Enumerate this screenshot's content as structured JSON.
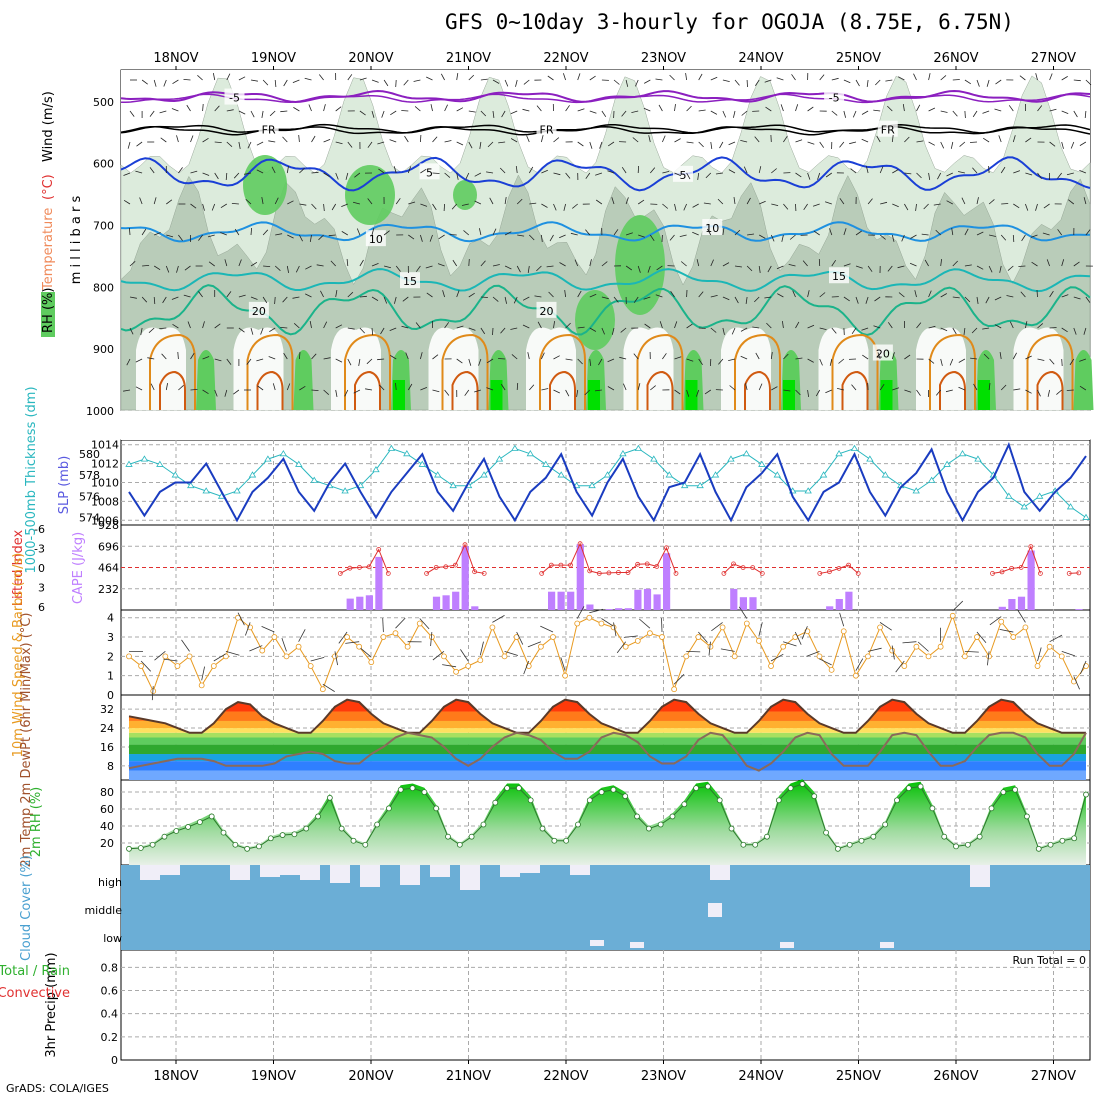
{
  "title": "GFS 0~10day 3-hourly for OGOJA (8.75E, 6.75N)",
  "credit": "GrADS: COLA/IGES",
  "colors": {
    "rh_light": "#dcebdc",
    "rh_mid": "#b3c7b3",
    "rh_dark": "#8fa58f",
    "rh_green": "#5fcc5f",
    "rh_bright": "#00e000",
    "temp_m5": "#8b1fbf",
    "temp_fr": "#000000",
    "temp_5": "#1a3fd6",
    "temp_10": "#1e90e0",
    "temp_15": "#1bb6b6",
    "temp_20": "#1bb38a",
    "temp_25": "#e08a1a",
    "temp_30": "#d05a10",
    "slp": "#1a3cc0",
    "thick": "#2ab7bf",
    "cape": "#bf7fff",
    "li": "#e03030",
    "wind": "#e89a20",
    "cloud_bg": "#6baed6",
    "cloud_high": "#f0eef8"
  },
  "chart_data": [
    {
      "type": "heatmap",
      "name": "cross-section",
      "ylabel": "m i l l i b a r s",
      "legend_labels": {
        "rh": "RH (%)",
        "temperature": "Temperature",
        "temp_unit": "(°C)",
        "wind": "Wind (m/s)"
      },
      "y_ticks": [
        "500",
        "600",
        "700",
        "800",
        "900",
        "1000"
      ],
      "y_values": [
        500,
        600,
        700,
        800,
        900,
        1000
      ],
      "contour_labels": [
        {
          "text": "-5",
          "t": 1.1,
          "p": 493,
          "color": "temp_m5"
        },
        {
          "text": "-5",
          "t": 7.25,
          "p": 493,
          "color": "temp_m5"
        },
        {
          "text": "FR",
          "t": 1.45,
          "p": 545,
          "color": "temp_fr"
        },
        {
          "text": "FR",
          "t": 4.3,
          "p": 545,
          "color": "temp_fr"
        },
        {
          "text": "FR",
          "t": 7.8,
          "p": 545,
          "color": "temp_fr"
        },
        {
          "text": "5",
          "t": 3.1,
          "p": 614,
          "color": "temp_5"
        },
        {
          "text": "5",
          "t": 5.7,
          "p": 618,
          "color": "temp_5"
        },
        {
          "text": "10",
          "t": 2.55,
          "p": 722,
          "color": "temp_10"
        },
        {
          "text": "10",
          "t": 6.0,
          "p": 704,
          "color": "temp_10"
        },
        {
          "text": "15",
          "t": 2.9,
          "p": 790,
          "color": "temp_15"
        },
        {
          "text": "15",
          "t": 7.3,
          "p": 782,
          "color": "temp_15"
        },
        {
          "text": "20",
          "t": 1.35,
          "p": 838,
          "color": "temp_20"
        },
        {
          "text": "20",
          "t": 4.3,
          "p": 838,
          "color": "temp_20"
        },
        {
          "text": "20",
          "t": 7.75,
          "p": 907,
          "color": "temp_20"
        }
      ]
    },
    {
      "type": "line",
      "name": "slp-thickness",
      "ylabel_left": "1000-500mb Thickness (dm)",
      "ylabel_right": "SLP (mb)",
      "left_ticks": [
        "574",
        "576",
        "578",
        "580"
      ],
      "right_ticks": [
        "1006",
        "1008",
        "1010",
        "1012",
        "1014"
      ],
      "series": [
        {
          "name": "SLP",
          "values": [
            1009,
            1006.5,
            1009,
            1010,
            1010,
            1012,
            1009,
            1006,
            1009,
            1010.5,
            1012.5,
            1009,
            1007,
            1010,
            1012,
            1009,
            1006.3,
            1009,
            1011,
            1013,
            1009,
            1007,
            1010,
            1012.5,
            1008.5,
            1006,
            1009,
            1010.5,
            1013,
            1009,
            1006.5,
            1010,
            1012.5,
            1008.5,
            1006,
            1009.5,
            1010,
            1013,
            1009,
            1006,
            1009.5,
            1011,
            1013,
            1008.5,
            1006,
            1009,
            1010,
            1013,
            1009,
            1006.5,
            1009.5,
            1011,
            1013.5,
            1009,
            1006,
            1009,
            1010.5,
            1014,
            1009,
            1007,
            1009,
            1010.5,
            1012.8
          ]
        },
        {
          "name": "Thickness",
          "values": [
            579,
            579.5,
            579,
            578,
            577,
            576.5,
            576,
            576.5,
            578,
            579.5,
            580,
            579,
            577.5,
            577,
            576.5,
            577,
            578.5,
            580.5,
            580,
            579,
            578,
            577,
            577,
            578,
            579.5,
            580.5,
            580,
            579,
            578,
            577,
            577,
            578,
            580,
            580.5,
            579.5,
            578,
            577,
            577,
            578,
            579.5,
            580,
            579,
            578,
            576.5,
            576.5,
            578,
            580,
            580.5,
            579.5,
            578,
            577,
            576.5,
            577.5,
            579,
            580,
            579.5,
            578,
            576,
            575,
            576,
            576.5,
            575,
            574
          ]
        }
      ]
    },
    {
      "type": "bar",
      "name": "cape-lifted-index",
      "ylabel_left": "Lifted Index",
      "ylabel_right": "CAPE (J/kg)",
      "left_ticks": [
        "-6",
        "-3",
        "0",
        "3",
        "6"
      ],
      "right_ticks": [
        "232",
        "464",
        "696",
        "928"
      ],
      "cape_values": [
        0,
        0,
        0,
        0,
        0,
        0,
        0,
        0,
        0,
        0,
        0,
        0,
        0,
        0,
        0,
        0,
        0,
        0,
        0,
        0,
        0,
        0,
        0,
        125,
        145,
        160,
        580,
        0,
        0,
        0,
        0,
        0,
        145,
        160,
        200,
        695,
        40,
        0,
        0,
        0,
        0,
        0,
        0,
        0,
        200,
        200,
        200,
        720,
        60,
        0,
        10,
        20,
        20,
        220,
        230,
        170,
        620,
        0,
        0,
        0,
        0,
        0,
        0,
        230,
        140,
        140,
        0,
        0,
        0,
        0,
        0,
        0,
        0,
        40,
        120,
        200,
        0,
        0,
        0,
        0,
        0,
        0,
        0,
        0,
        0,
        0,
        0,
        0,
        0,
        0,
        0,
        35,
        120,
        145,
        650,
        0,
        0,
        0,
        0,
        10
      ],
      "li_values": [
        null,
        null,
        null,
        null,
        null,
        null,
        null,
        null,
        null,
        null,
        null,
        null,
        null,
        null,
        null,
        null,
        null,
        null,
        null,
        null,
        null,
        null,
        null,
        null,
        null,
        null,
        null,
        null,
        null,
        null,
        null,
        null,
        null,
        null,
        null,
        null,
        null,
        null,
        null,
        null,
        null,
        null,
        null,
        null,
        null,
        null,
        null,
        null,
        null,
        null,
        null,
        null,
        null,
        null,
        null,
        null,
        null,
        null,
        null,
        null,
        null,
        null,
        null,
        null,
        null,
        null,
        null,
        null,
        null,
        null,
        null,
        null,
        null,
        null,
        null,
        null,
        null,
        null,
        null,
        null,
        null,
        null,
        null,
        null,
        null,
        null,
        null,
        null,
        null,
        null,
        null,
        null,
        null,
        null,
        null,
        null,
        null,
        null,
        null,
        null,
        null
      ]
    },
    {
      "type": "line",
      "name": "wind-speed",
      "ylabel": "10m Wind Speed & Barbs (m/s)",
      "y_ticks": [
        "0",
        "1",
        "2",
        "3",
        "4"
      ],
      "values": [
        2,
        1.5,
        0.2,
        2,
        1.5,
        2,
        0.5,
        1.5,
        2,
        4,
        3.5,
        2.3,
        3,
        2,
        2.5,
        1.5,
        0.3,
        2,
        3,
        2.5,
        1.7,
        3,
        3.2,
        2.5,
        3.7,
        3,
        2,
        1.2,
        1.5,
        1.8,
        3.5,
        2,
        3,
        1.5,
        2.5,
        3,
        1,
        3.7,
        4,
        3.7,
        3.5,
        2.5,
        2.8,
        3.2,
        3,
        0.3,
        2,
        3,
        2.5,
        3.5,
        2,
        3.7,
        2.8,
        1.5,
        2.5,
        3,
        3.3,
        2,
        1.3,
        3.3,
        1,
        2,
        3.5,
        2.3,
        1.5,
        2.5,
        2,
        2.5,
        4.1,
        2,
        3,
        2,
        3.8,
        3,
        3.5,
        1.5,
        2.5,
        2,
        0.7,
        1.5
      ],
      "single_values_note": "wind speed"
    },
    {
      "type": "area",
      "name": "temperature",
      "ylabel": "2m Temp 2m DewPt (6hr Min/Max) (°C)",
      "y_ticks": [
        "8",
        "16",
        "24",
        "32"
      ],
      "temp_values": [
        29,
        28,
        27,
        26,
        24,
        22,
        22,
        26,
        32,
        35,
        34,
        29,
        26,
        24,
        22,
        22,
        27,
        33,
        36,
        35,
        30,
        26,
        24,
        22,
        22,
        27,
        33,
        36,
        35,
        30,
        26,
        24,
        22,
        22,
        27,
        33,
        36,
        35,
        30,
        26,
        24,
        22,
        22,
        27,
        33,
        36,
        35,
        30,
        26,
        24,
        22,
        22,
        27,
        33,
        36,
        35,
        30,
        26,
        24,
        22,
        22,
        27,
        33,
        36,
        35,
        30,
        26,
        24,
        22,
        22,
        27,
        33,
        36,
        35,
        30,
        26,
        24,
        22,
        22,
        22
      ],
      "dew_values": [
        7,
        8,
        9,
        10,
        11,
        11,
        11,
        10,
        8,
        8,
        8,
        8,
        9,
        12,
        13,
        14,
        13,
        10,
        9,
        9,
        13,
        16,
        20,
        22,
        21,
        20,
        16,
        11,
        8,
        11,
        16,
        20,
        22,
        21,
        19,
        14,
        11,
        11,
        14,
        20,
        22,
        21,
        18,
        12,
        9,
        9,
        12,
        19,
        22,
        21,
        15,
        8,
        6,
        9,
        14,
        20,
        22,
        21,
        13,
        8,
        8,
        8,
        14,
        21,
        22,
        21,
        14,
        8,
        8,
        10,
        16,
        21,
        22,
        22,
        20,
        13,
        8,
        8,
        13,
        22
      ]
    },
    {
      "type": "area",
      "name": "relative-humidity",
      "ylabel": "2m RH (%)",
      "y_ticks": [
        "20",
        "40",
        "60",
        "80"
      ],
      "values": [
        15,
        16,
        20,
        30,
        37,
        42,
        48,
        55,
        35,
        20,
        15,
        18,
        28,
        32,
        33,
        40,
        55,
        78,
        40,
        25,
        20,
        45,
        65,
        88,
        90,
        85,
        65,
        30,
        20,
        30,
        45,
        72,
        90,
        90,
        75,
        40,
        25,
        25,
        45,
        75,
        85,
        88,
        80,
        55,
        40,
        45,
        55,
        70,
        90,
        92,
        75,
        40,
        20,
        20,
        30,
        75,
        90,
        95,
        80,
        35,
        15,
        20,
        25,
        30,
        45,
        75,
        90,
        92,
        65,
        30,
        18,
        20,
        30,
        65,
        85,
        88,
        55,
        15,
        20,
        25,
        28,
        82
      ]
    },
    {
      "type": "bar",
      "name": "cloud-cover",
      "ylabel": "Cloud Cover (%)",
      "levels": [
        "high",
        "middle",
        "low"
      ]
    },
    {
      "type": "line",
      "name": "precipitation",
      "ylabel": "3hr Precip (mm)",
      "legend_total": "Total / Rain",
      "legend_conv": "Convective",
      "run_total": "Run Total = 0",
      "y_ticks": [
        "0",
        "0.2",
        "0.4",
        "0.6",
        "0.8"
      ],
      "values": []
    }
  ],
  "dates_top": [
    "18NOV",
    "19NOV",
    "20NOV",
    "21NOV",
    "22NOV",
    "23NOV",
    "24NOV",
    "25NOV",
    "26NOV",
    "27NOV"
  ],
  "dates_bottom": [
    "18NOV",
    "19NOV",
    "20NOV",
    "21NOV",
    "22NOV",
    "23NOV",
    "24NOV",
    "25NOV",
    "26NOV",
    "27NOV"
  ]
}
